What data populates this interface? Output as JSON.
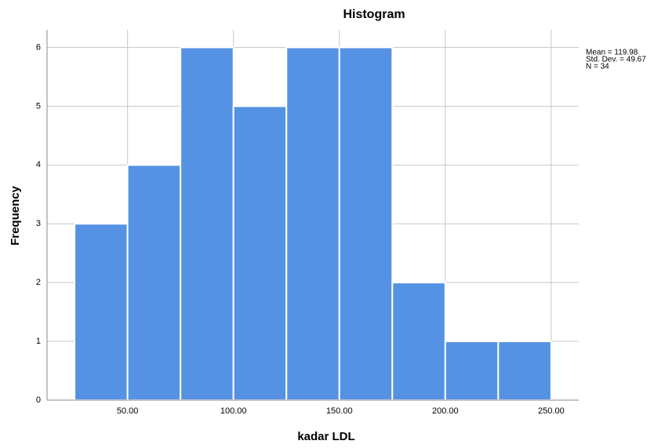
{
  "chart_data": {
    "type": "histogram",
    "title": "Histogram",
    "x_label": "kadar LDL",
    "y_label": "Frequency",
    "bins": [
      25,
      50,
      75,
      100,
      125,
      150,
      175,
      200,
      225,
      250
    ],
    "values": [
      3,
      4,
      6,
      5,
      6,
      6,
      2,
      1,
      1
    ],
    "color": "#5592e3",
    "xlim": [
      12,
      263
    ],
    "ylim": [
      0,
      6.3
    ],
    "xticks": [
      {
        "value": 50,
        "label": "50.00"
      },
      {
        "value": 100,
        "label": "100.00"
      },
      {
        "value": 150,
        "label": "150.00"
      },
      {
        "value": 200,
        "label": "200.00"
      },
      {
        "value": 250,
        "label": "250.00"
      }
    ],
    "yticks": [
      0,
      1,
      2,
      3,
      4,
      5,
      6
    ],
    "grid": true,
    "annotations": [
      "Mean = 119.98",
      "Std. Dev. = 49.67",
      "N = 34"
    ]
  }
}
